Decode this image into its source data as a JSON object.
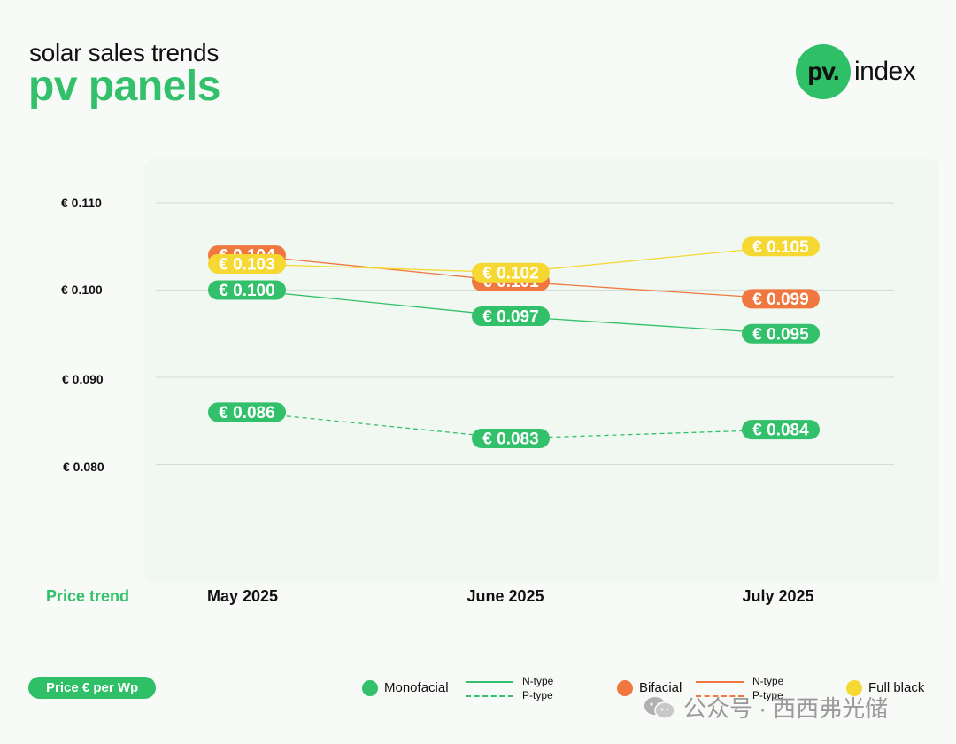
{
  "header": {
    "subtitle": "solar sales trends",
    "title": "pv panels"
  },
  "logo": {
    "mark": "pv.",
    "word": "index"
  },
  "chart_data": {
    "type": "line",
    "categories": [
      "May 2025",
      "June 2025",
      "July 2025"
    ],
    "ylim": [
      0.08,
      0.11
    ],
    "yticks": [
      "€ 0.110",
      "€ 0.100",
      "€ 0.090",
      "€ 0.080"
    ],
    "xlabel": "Price trend",
    "series": [
      {
        "name": "Monofacial N-type",
        "color": "#33c06b",
        "dash": "solid",
        "values": [
          0.1,
          0.097,
          0.095
        ],
        "labels": [
          "€ 0.100",
          "€ 0.097",
          "€ 0.095"
        ]
      },
      {
        "name": "Monofacial P-type",
        "color": "#33c06b",
        "dash": "dashed",
        "values": [
          0.086,
          0.083,
          0.084
        ],
        "labels": [
          "€ 0.086",
          "€ 0.083",
          "€ 0.084"
        ]
      },
      {
        "name": "Bifacial N-type",
        "color": "#f07840",
        "dash": "solid",
        "values": [
          0.104,
          0.101,
          0.099
        ],
        "labels": [
          "€ 0.104",
          "€ 0.101",
          "€ 0.099"
        ]
      },
      {
        "name": "Full black",
        "color": "#f5d832",
        "dash": "solid",
        "values": [
          0.103,
          0.102,
          0.105
        ],
        "labels": [
          "€ 0.103",
          "€ 0.102",
          "€ 0.105"
        ]
      }
    ]
  },
  "legend": {
    "unit_badge": "Price € per Wp",
    "monofacial": "Monofacial",
    "bifacial": "Bifacial",
    "full_black": "Full black",
    "n_type": "N-type",
    "p_type": "P-type",
    "colors": {
      "green": "#33c06b",
      "orange": "#f07840",
      "yellow": "#f5d832"
    }
  },
  "watermark": "公众号 · 西西弗光储"
}
